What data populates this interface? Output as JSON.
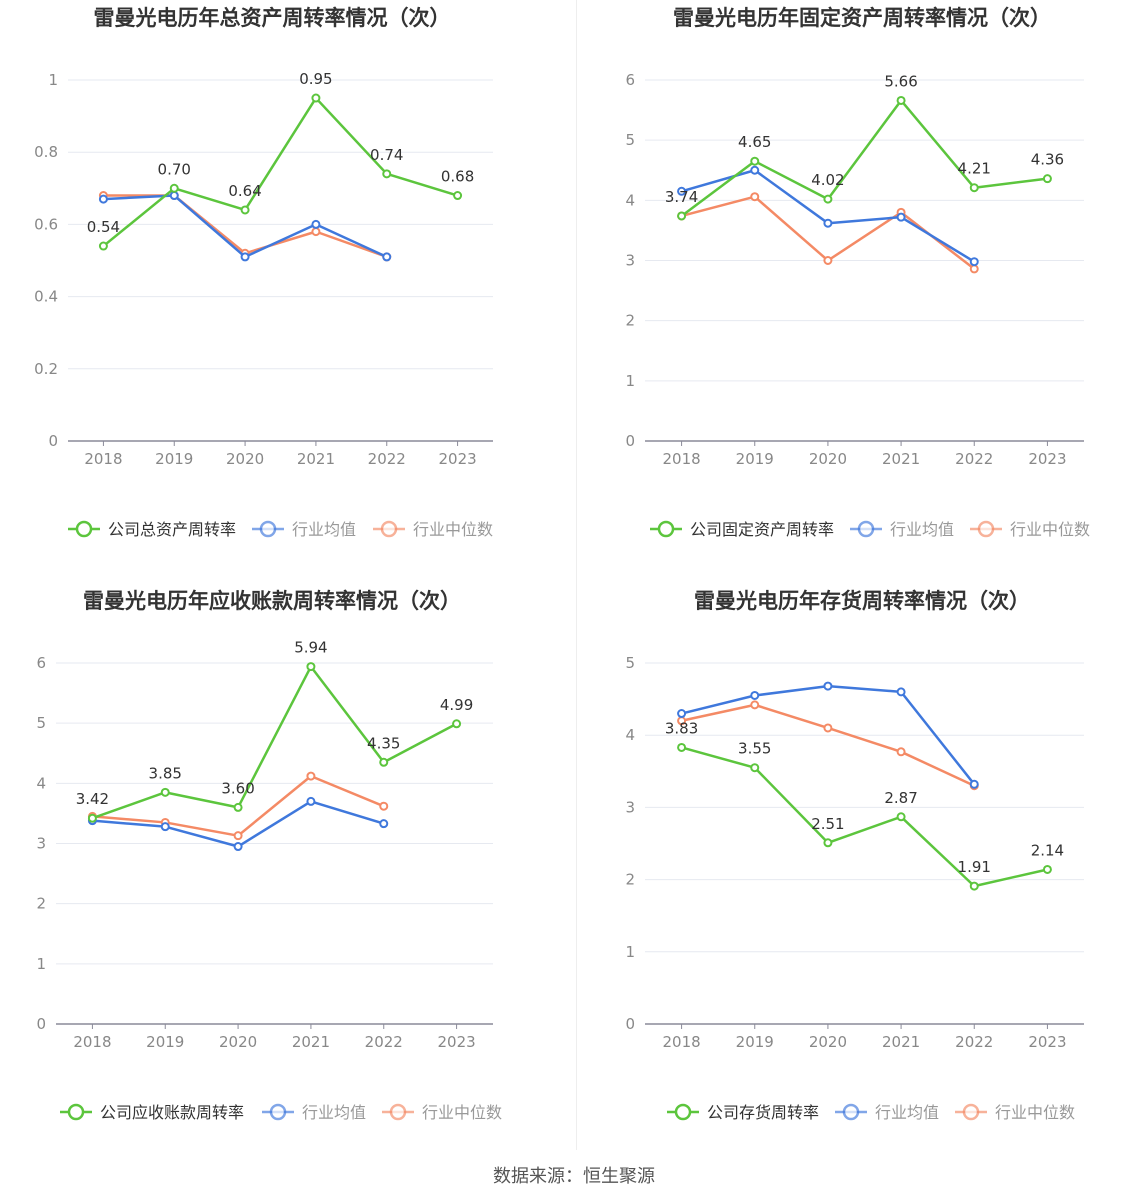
{
  "source": "数据来源：恒生聚源",
  "colors": {
    "company": "#5cc53d",
    "avg": "#3f78dc",
    "median": "#f48a65",
    "grid": "#e6e9f0",
    "axis": "#8a8a99"
  },
  "chart_data": [
    {
      "type": "line",
      "title": "雷曼光电历年总资产周转率情况（次）",
      "categories": [
        "2018",
        "2019",
        "2020",
        "2021",
        "2022",
        "2023"
      ],
      "ylim": [
        0,
        1
      ],
      "yticks": [
        "0",
        "0.2",
        "0.4",
        "0.6",
        "0.8",
        "1"
      ],
      "ytick_values": [
        0,
        0.2,
        0.4,
        0.6,
        0.8,
        1
      ],
      "legend_position": "bottom",
      "series": [
        {
          "name": "公司总资产周转率",
          "key": "company",
          "values": [
            0.54,
            0.7,
            0.64,
            0.95,
            0.74,
            0.68
          ],
          "labels": [
            "0.54",
            "0.70",
            "0.64",
            "0.95",
            "0.74",
            "0.68"
          ]
        },
        {
          "name": "行业均值",
          "key": "avg",
          "values": [
            0.67,
            0.68,
            0.51,
            0.6,
            0.51,
            null
          ]
        },
        {
          "name": "行业中位数",
          "key": "median",
          "values": [
            0.68,
            0.68,
            0.52,
            0.58,
            0.51,
            null
          ]
        }
      ]
    },
    {
      "type": "line",
      "title": "雷曼光电历年固定资产周转率情况（次）",
      "categories": [
        "2018",
        "2019",
        "2020",
        "2021",
        "2022",
        "2023"
      ],
      "ylim": [
        0,
        6
      ],
      "yticks": [
        "0",
        "1",
        "2",
        "3",
        "4",
        "5",
        "6"
      ],
      "ytick_values": [
        0,
        1,
        2,
        3,
        4,
        5,
        6
      ],
      "legend_position": "bottom",
      "series": [
        {
          "name": "公司固定资产周转率",
          "key": "company",
          "values": [
            3.74,
            4.65,
            4.02,
            5.66,
            4.21,
            4.36
          ],
          "labels": [
            "3.74",
            "4.65",
            "4.02",
            "5.66",
            "4.21",
            "4.36"
          ]
        },
        {
          "name": "行业均值",
          "key": "avg",
          "values": [
            4.15,
            4.5,
            3.62,
            3.72,
            2.98,
            null
          ]
        },
        {
          "name": "行业中位数",
          "key": "median",
          "values": [
            3.74,
            4.06,
            3.0,
            3.8,
            2.86,
            null
          ]
        }
      ]
    },
    {
      "type": "line",
      "title": "雷曼光电历年应收账款周转率情况（次）",
      "categories": [
        "2018",
        "2019",
        "2020",
        "2021",
        "2022",
        "2023"
      ],
      "ylim": [
        0,
        6
      ],
      "yticks": [
        "0",
        "1",
        "2",
        "3",
        "4",
        "5",
        "6"
      ],
      "ytick_values": [
        0,
        1,
        2,
        3,
        4,
        5,
        6
      ],
      "legend_position": "bottom",
      "series": [
        {
          "name": "公司应收账款周转率",
          "key": "company",
          "values": [
            3.42,
            3.85,
            3.6,
            5.94,
            4.35,
            4.99
          ],
          "labels": [
            "3.42",
            "3.85",
            "3.60",
            "5.94",
            "4.35",
            "4.99"
          ]
        },
        {
          "name": "行业均值",
          "key": "avg",
          "values": [
            3.38,
            3.28,
            2.95,
            3.7,
            3.33,
            null
          ]
        },
        {
          "name": "行业中位数",
          "key": "median",
          "values": [
            3.45,
            3.35,
            3.13,
            4.12,
            3.62,
            null
          ]
        }
      ]
    },
    {
      "type": "line",
      "title": "雷曼光电历年存货周转率情况（次）",
      "categories": [
        "2018",
        "2019",
        "2020",
        "2021",
        "2022",
        "2023"
      ],
      "ylim": [
        0,
        5
      ],
      "yticks": [
        "0",
        "1",
        "2",
        "3",
        "4",
        "5"
      ],
      "ytick_values": [
        0,
        1,
        2,
        3,
        4,
        5
      ],
      "legend_position": "bottom",
      "series": [
        {
          "name": "公司存货周转率",
          "key": "company",
          "values": [
            3.83,
            3.55,
            2.51,
            2.87,
            1.91,
            2.14
          ],
          "labels": [
            "3.83",
            "3.55",
            "2.51",
            "2.87",
            "1.91",
            "2.14"
          ]
        },
        {
          "name": "行业均值",
          "key": "avg",
          "values": [
            4.3,
            4.55,
            4.68,
            4.6,
            3.32,
            null
          ]
        },
        {
          "name": "行业中位数",
          "key": "median",
          "values": [
            4.2,
            4.42,
            4.1,
            3.77,
            3.3,
            null
          ]
        }
      ]
    }
  ]
}
